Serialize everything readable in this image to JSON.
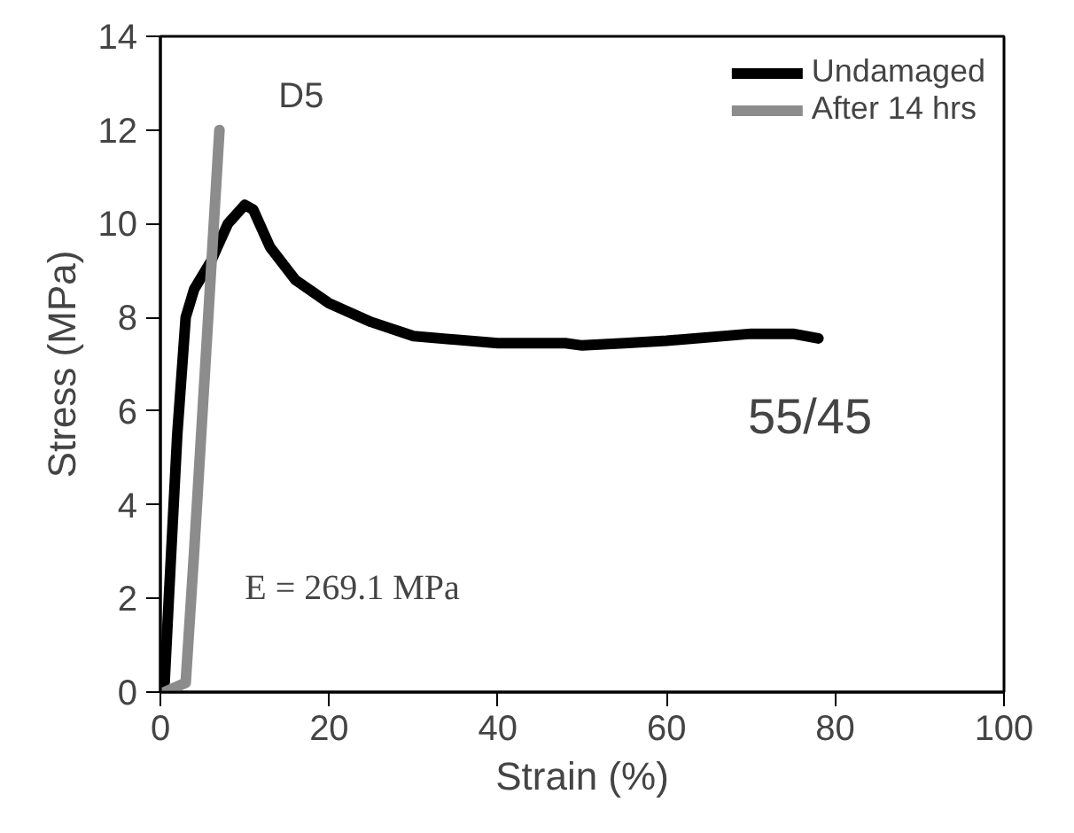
{
  "chart_data": {
    "type": "line",
    "xlabel": "Strain (%)",
    "ylabel": "Stress (MPa)",
    "xlim": [
      0,
      100
    ],
    "xticks": [
      0,
      20,
      40,
      60,
      80,
      100
    ],
    "ylim": [
      0,
      14
    ],
    "yticks": [
      0,
      2,
      4,
      6,
      8,
      10,
      12,
      14
    ],
    "grid": false,
    "legend": "top right",
    "marker": "none",
    "line_style": "solid",
    "series": [
      {
        "name": "Undamaged",
        "color": "#000000",
        "x": [
          0.5,
          1,
          2,
          3,
          4,
          6,
          8,
          10,
          11,
          13,
          16,
          20,
          25,
          30,
          40,
          48,
          50,
          55,
          60,
          70,
          75,
          78
        ],
        "values": [
          0.2,
          2,
          5.5,
          8,
          8.6,
          9.2,
          10,
          10.4,
          10.3,
          9.5,
          8.8,
          8.3,
          7.9,
          7.6,
          7.45,
          7.45,
          7.4,
          7.45,
          7.5,
          7.65,
          7.65,
          7.55
        ]
      },
      {
        "name": "After 14 hrs",
        "color": "#8c8c8c",
        "x": [
          0.5,
          3,
          4,
          5,
          6,
          7
        ],
        "values": [
          0,
          0.2,
          3,
          6,
          9,
          12
        ]
      }
    ],
    "annotations": [
      "D5",
      "55/45",
      "E = 269.1 MPa"
    ]
  }
}
